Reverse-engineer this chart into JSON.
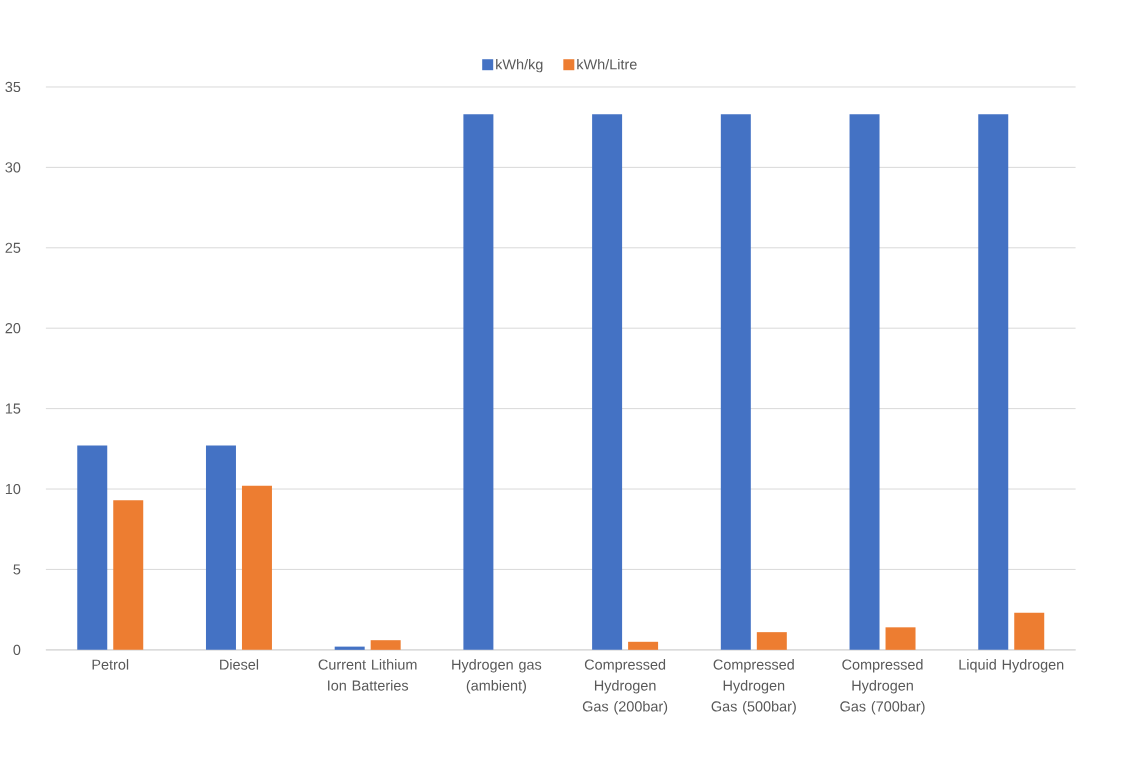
{
  "chart_data": {
    "type": "bar",
    "categories": [
      "Petrol",
      "Diesel",
      "Current Lithium Ion Batteries",
      "Hydrogen gas (ambient)",
      "Compressed Hydrogen Gas (200bar)",
      "Compressed Hydrogen Gas (500bar)",
      "Compressed Hydrogen Gas (700bar)",
      "Liquid Hydrogen"
    ],
    "series": [
      {
        "name": "kWh/kg",
        "color": "#4472c4",
        "values": [
          12.7,
          12.7,
          0.2,
          33.3,
          33.3,
          33.3,
          33.3,
          33.3
        ]
      },
      {
        "name": "kWh/Litre",
        "color": "#ed7d31",
        "values": [
          9.3,
          10.2,
          0.6,
          0,
          0.5,
          1.1,
          1.4,
          2.3
        ]
      }
    ],
    "ylim": [
      0,
      35
    ],
    "yticks": [
      0,
      5,
      10,
      15,
      20,
      25,
      30,
      35
    ],
    "grid": "y",
    "legend": "top"
  }
}
